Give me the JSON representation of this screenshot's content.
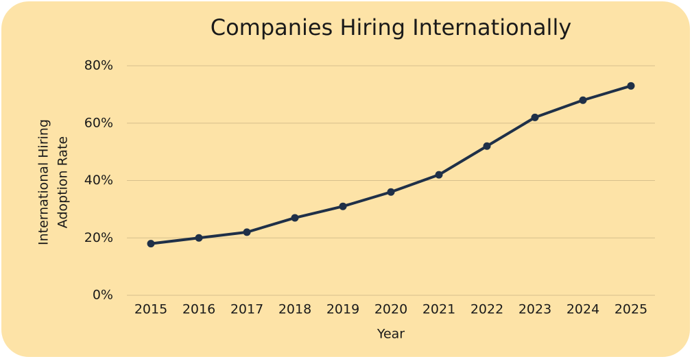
{
  "chart_data": {
    "type": "line",
    "title": "Companies Hiring Internationally",
    "x_label": "Year",
    "y_label": [
      "International Hiring",
      "Adoption Rate"
    ],
    "categories": [
      "2015",
      "2016",
      "2017",
      "2018",
      "2019",
      "2020",
      "2021",
      "2022",
      "2023",
      "2024",
      "2025"
    ],
    "values": [
      18,
      20,
      22,
      27,
      31,
      36,
      42,
      52,
      62,
      68,
      73
    ],
    "color": "#1f3048",
    "ylim": [
      0,
      80
    ],
    "yticks": [
      {
        "value": 0,
        "label": "0%"
      },
      {
        "value": 20,
        "label": "20%"
      },
      {
        "value": 40,
        "label": "40%"
      },
      {
        "value": 60,
        "label": "60%"
      },
      {
        "value": 80,
        "label": "80%"
      }
    ],
    "grid": true
  }
}
